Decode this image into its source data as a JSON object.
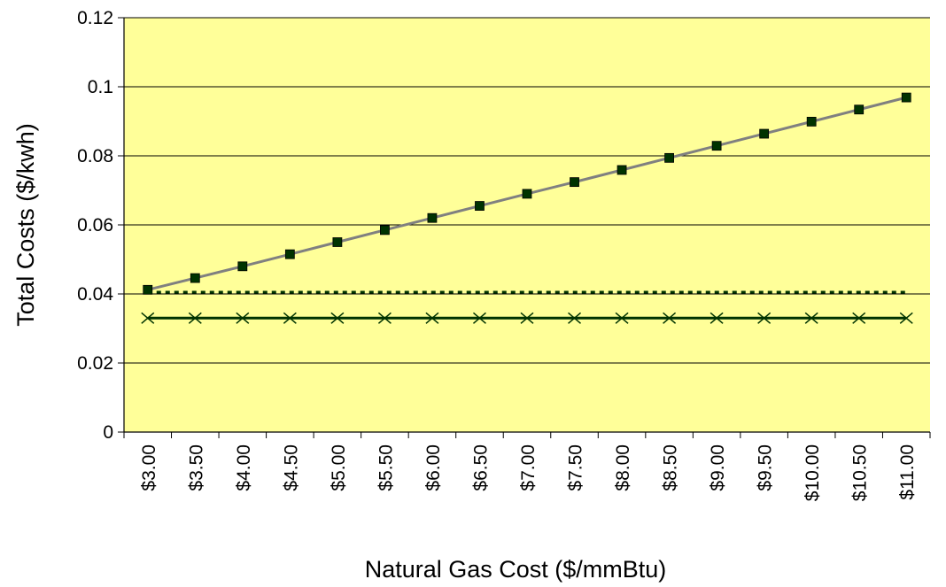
{
  "chart_data": {
    "type": "line",
    "xlabel": "Natural Gas Cost ($/mmBtu)",
    "ylabel": "Total Costs ($/kwh)",
    "categories": [
      "$3.00",
      "$3.50",
      "$4.00",
      "$4.50",
      "$5.00",
      "$5.50",
      "$6.00",
      "$6.50",
      "$7.00",
      "$7.50",
      "$8.00",
      "$8.50",
      "$9.00",
      "$9.50",
      "$10.00",
      "$10.50",
      "$11.00"
    ],
    "ylim": [
      0,
      0.12
    ],
    "yticks": [
      "0",
      "0.02",
      "0.04",
      "0.06",
      "0.08",
      "0.1",
      "0.12"
    ],
    "grid": true,
    "legend": "none",
    "series": [
      {
        "marker": "square",
        "line_style": "solid",
        "line_color": "#808080",
        "marker_color": "#003300",
        "values": [
          0.0412,
          0.0446,
          0.048,
          0.0515,
          0.055,
          0.0585,
          0.062,
          0.0655,
          0.069,
          0.0724,
          0.0759,
          0.0794,
          0.0829,
          0.0864,
          0.0899,
          0.0934,
          0.0969
        ]
      },
      {
        "marker": "none",
        "line_style": "dotted",
        "line_color": "#003300",
        "values": [
          0.0405,
          0.0405,
          0.0405,
          0.0405,
          0.0405,
          0.0405,
          0.0405,
          0.0405,
          0.0405,
          0.0405,
          0.0405,
          0.0405,
          0.0405,
          0.0405,
          0.0405,
          0.0405,
          0.0405
        ]
      },
      {
        "marker": "x",
        "line_style": "solid",
        "line_color": "#003300",
        "values": [
          0.033,
          0.033,
          0.033,
          0.033,
          0.033,
          0.033,
          0.033,
          0.033,
          0.033,
          0.033,
          0.033,
          0.033,
          0.033,
          0.033,
          0.033,
          0.033,
          0.033
        ]
      }
    ],
    "colors": {
      "plot_background": "#ffff99",
      "gridline": "#000000"
    }
  }
}
